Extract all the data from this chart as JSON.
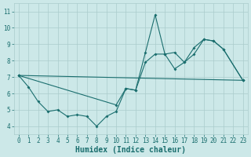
{
  "xlabel": "Humidex (Indice chaleur)",
  "bg_color": "#cce8e8",
  "grid_color": "#aacccc",
  "line_color": "#1a6e6e",
  "line1_x": [
    0,
    1,
    2,
    3,
    4,
    5,
    6,
    7,
    8,
    9,
    10,
    11,
    12,
    13,
    14,
    15,
    16,
    17,
    18,
    19,
    20,
    21,
    23
  ],
  "line1_y": [
    7.1,
    6.4,
    5.5,
    4.9,
    5.0,
    4.6,
    4.7,
    4.6,
    4.0,
    4.6,
    4.9,
    6.3,
    6.2,
    8.5,
    10.8,
    8.4,
    7.5,
    7.9,
    8.4,
    9.3,
    9.2,
    8.7,
    6.8
  ],
  "line2_x": [
    0,
    23
  ],
  "line2_y": [
    7.1,
    6.8
  ],
  "line3_x": [
    0,
    10,
    11,
    12,
    13,
    14,
    15,
    16,
    17,
    18,
    19,
    20,
    21,
    23
  ],
  "line3_y": [
    7.1,
    5.3,
    6.3,
    6.2,
    7.9,
    8.4,
    8.4,
    8.5,
    7.9,
    8.8,
    9.3,
    9.2,
    8.7,
    6.8
  ],
  "ylim": [
    3.5,
    11.5
  ],
  "xlim": [
    -0.5,
    23.5
  ],
  "yticks": [
    4,
    5,
    6,
    7,
    8,
    9,
    10,
    11
  ],
  "xticks": [
    0,
    1,
    2,
    3,
    4,
    5,
    6,
    7,
    8,
    9,
    10,
    11,
    12,
    13,
    14,
    15,
    16,
    17,
    18,
    19,
    20,
    21,
    22,
    23
  ],
  "tick_fontsize": 5.5,
  "xlabel_fontsize": 7,
  "linewidth": 0.8,
  "markersize": 2.0
}
